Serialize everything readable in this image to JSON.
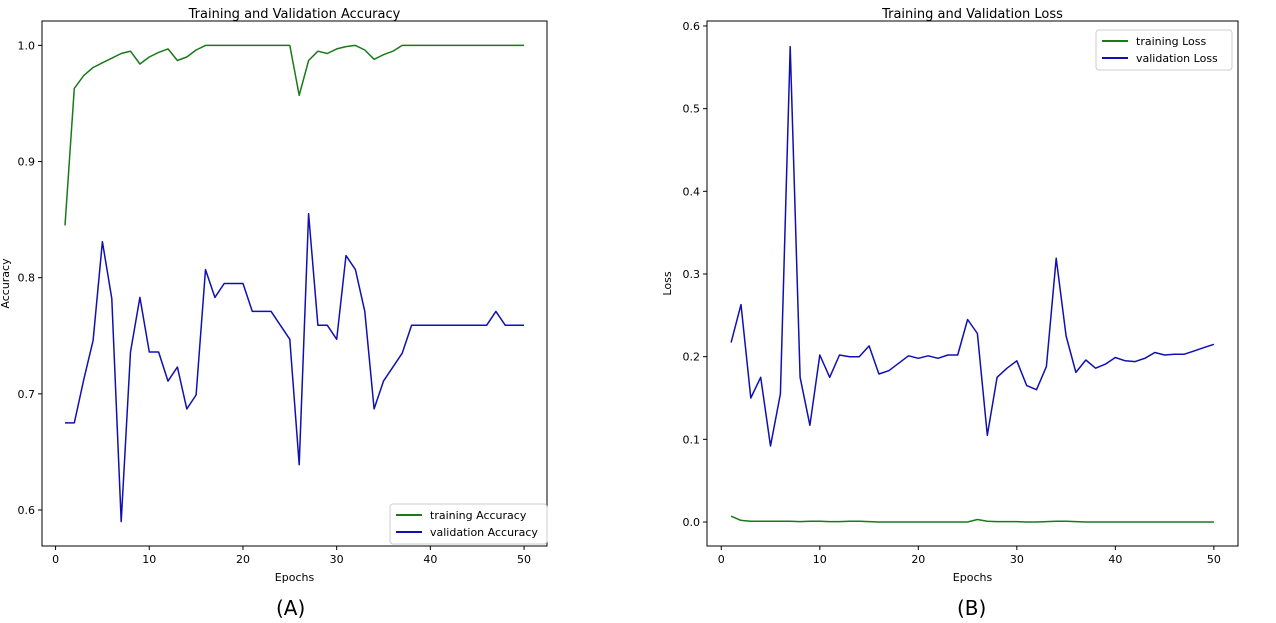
{
  "panels": [
    {
      "label": "(A)"
    },
    {
      "label": "(B)"
    }
  ],
  "chart_data": [
    {
      "type": "line",
      "title": "Training and Validation Accuracy",
      "xlabel": "Epochs",
      "ylabel": "Accuracy",
      "xlim": [
        -1.45,
        52.45
      ],
      "ylim": [
        0.569,
        1.021
      ],
      "xticks": [
        0,
        10,
        20,
        30,
        40,
        50
      ],
      "yticks": [
        0.6,
        0.7,
        0.8,
        0.9,
        1.0
      ],
      "xtick_labels": [
        "0",
        "10",
        "20",
        "30",
        "40",
        "50"
      ],
      "ytick_labels": [
        "0.6",
        "0.7",
        "0.8",
        "0.9",
        "1.0"
      ],
      "grid": false,
      "legend_position": "lower-right",
      "x": [
        1,
        2,
        3,
        4,
        5,
        6,
        7,
        8,
        9,
        10,
        11,
        12,
        13,
        14,
        15,
        16,
        17,
        18,
        19,
        20,
        21,
        22,
        23,
        24,
        25,
        26,
        27,
        28,
        29,
        30,
        31,
        32,
        33,
        34,
        35,
        36,
        37,
        38,
        39,
        40,
        41,
        42,
        43,
        44,
        45,
        46,
        47,
        48,
        49,
        50
      ],
      "series": [
        {
          "name": "training Accuracy",
          "color": "#1a7a1a",
          "values": [
            0.845,
            0.963,
            0.974,
            0.981,
            0.985,
            0.989,
            0.993,
            0.995,
            0.984,
            0.99,
            0.994,
            0.997,
            0.987,
            0.99,
            0.996,
            1.0,
            1.0,
            1.0,
            1.0,
            1.0,
            1.0,
            1.0,
            1.0,
            1.0,
            1.0,
            0.957,
            0.987,
            0.995,
            0.993,
            0.997,
            0.999,
            1.0,
            0.996,
            0.988,
            0.992,
            0.995,
            1.0,
            1.0,
            1.0,
            1.0,
            1.0,
            1.0,
            1.0,
            1.0,
            1.0,
            1.0,
            1.0,
            1.0,
            1.0,
            1.0
          ]
        },
        {
          "name": "validation Accuracy",
          "color": "#1010b0",
          "values": [
            0.675,
            0.675,
            0.712,
            0.746,
            0.831,
            0.782,
            0.59,
            0.736,
            0.783,
            0.736,
            0.736,
            0.711,
            0.723,
            0.687,
            0.699,
            0.807,
            0.783,
            0.795,
            0.795,
            0.795,
            0.771,
            0.771,
            0.771,
            0.759,
            0.747,
            0.639,
            0.855,
            0.759,
            0.759,
            0.747,
            0.819,
            0.807,
            0.771,
            0.687,
            0.711,
            0.723,
            0.735,
            0.759,
            0.759,
            0.759,
            0.759,
            0.759,
            0.759,
            0.759,
            0.759,
            0.759,
            0.771,
            0.759,
            0.759,
            0.759
          ]
        }
      ]
    },
    {
      "type": "line",
      "title": "Training and Validation Loss",
      "xlabel": "Epochs",
      "ylabel": "Loss",
      "xlim": [
        -1.45,
        52.45
      ],
      "ylim": [
        -0.029,
        0.606
      ],
      "xticks": [
        0,
        10,
        20,
        30,
        40,
        50
      ],
      "yticks": [
        0.0,
        0.1,
        0.2,
        0.3,
        0.4,
        0.5,
        0.6
      ],
      "xtick_labels": [
        "0",
        "10",
        "20",
        "30",
        "40",
        "50"
      ],
      "ytick_labels": [
        "0.0",
        "0.1",
        "0.2",
        "0.3",
        "0.4",
        "0.5",
        "0.6"
      ],
      "grid": false,
      "legend_position": "upper-right",
      "x": [
        1,
        2,
        3,
        4,
        5,
        6,
        7,
        8,
        9,
        10,
        11,
        12,
        13,
        14,
        15,
        16,
        17,
        18,
        19,
        20,
        21,
        22,
        23,
        24,
        25,
        26,
        27,
        28,
        29,
        30,
        31,
        32,
        33,
        34,
        35,
        36,
        37,
        38,
        39,
        40,
        41,
        42,
        43,
        44,
        45,
        46,
        47,
        48,
        49,
        50
      ],
      "series": [
        {
          "name": "training Loss",
          "color": "#1a7a1a",
          "values": [
            0.007,
            0.002,
            0.001,
            0.001,
            0.001,
            0.001,
            0.001,
            0.0005,
            0.001,
            0.001,
            0.0005,
            0.0005,
            0.001,
            0.001,
            0.0005,
            0.0,
            0.0,
            0.0,
            0.0,
            0.0,
            0.0,
            0.0,
            0.0,
            0.0,
            0.0,
            0.003,
            0.001,
            0.0005,
            0.0005,
            0.0005,
            0.0,
            0.0,
            0.0005,
            0.001,
            0.001,
            0.0005,
            0.0,
            0.0,
            0.0,
            0.0,
            0.0,
            0.0,
            0.0,
            0.0,
            0.0,
            0.0,
            0.0,
            0.0,
            0.0,
            0.0
          ]
        },
        {
          "name": "validation Loss",
          "color": "#1010b0",
          "values": [
            0.217,
            0.263,
            0.15,
            0.175,
            0.092,
            0.155,
            0.575,
            0.175,
            0.117,
            0.202,
            0.175,
            0.202,
            0.2,
            0.2,
            0.213,
            0.179,
            0.183,
            0.192,
            0.201,
            0.198,
            0.201,
            0.198,
            0.202,
            0.202,
            0.245,
            0.228,
            0.105,
            0.175,
            0.186,
            0.195,
            0.165,
            0.16,
            0.188,
            0.319,
            0.225,
            0.181,
            0.196,
            0.186,
            0.191,
            0.199,
            0.195,
            0.194,
            0.198,
            0.205,
            0.202,
            0.203,
            0.203,
            0.207,
            0.211,
            0.215
          ]
        }
      ]
    }
  ]
}
